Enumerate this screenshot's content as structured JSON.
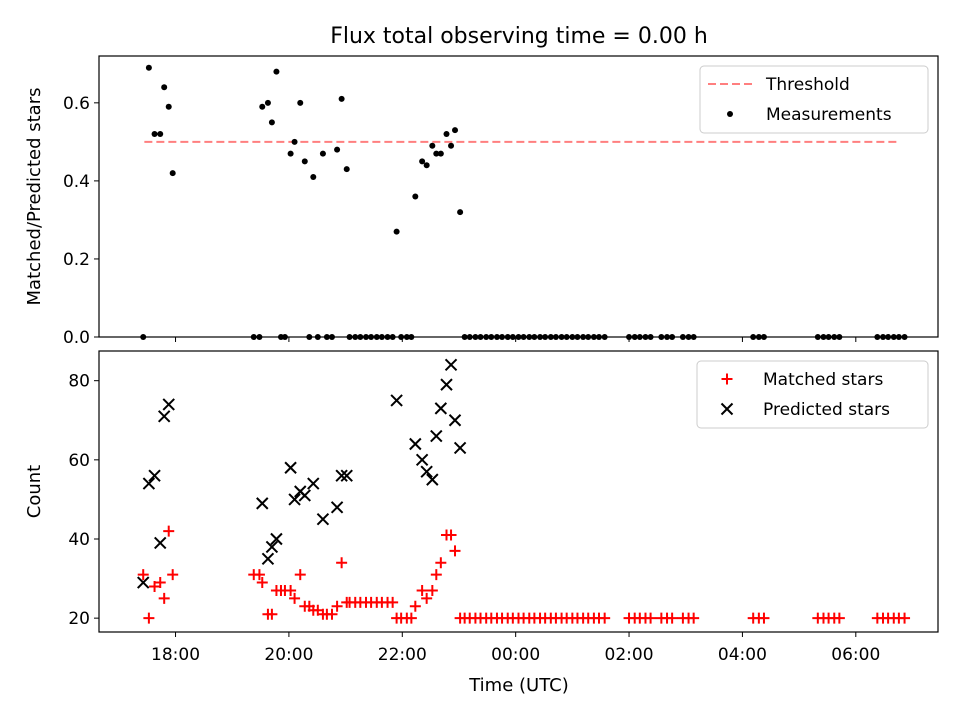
{
  "chart_data": {
    "title": "Flux total observing time = 0.00 h",
    "x_axis": {
      "label": "Time (UTC)",
      "range_hours": [
        16.65,
        31.45
      ],
      "ticks": [
        {
          "value": 18,
          "label": "18:00"
        },
        {
          "value": 20,
          "label": "20:00"
        },
        {
          "value": 22,
          "label": "22:00"
        },
        {
          "value": 24,
          "label": "00:00"
        },
        {
          "value": 26,
          "label": "02:00"
        },
        {
          "value": 28,
          "label": "04:00"
        },
        {
          "value": 30,
          "label": "06:00"
        }
      ]
    },
    "panels": [
      {
        "type": "scatter",
        "ylabel": "Matched/Predicted stars",
        "ylim": [
          0,
          0.72
        ],
        "yticks": [
          "0.0",
          "0.2",
          "0.4",
          "0.6"
        ],
        "yticks_values": [
          0,
          0.2,
          0.4,
          0.6
        ],
        "legend": {
          "placement": "upper right",
          "entries": [
            {
              "label": "Threshold",
              "style": "dashed-line",
              "color": "#ff7f7f"
            },
            {
              "label": "Measurements",
              "style": "dot",
              "color": "#000000"
            }
          ]
        },
        "threshold": {
          "value": 0.5,
          "x_range": [
            17.45,
            30.75
          ],
          "color": "#ff7f7f"
        },
        "measurements": [
          [
            17.53,
            0.69
          ],
          [
            17.63,
            0.52
          ],
          [
            17.73,
            0.52
          ],
          [
            17.8,
            0.64
          ],
          [
            17.88,
            0.59
          ],
          [
            17.95,
            0.42
          ],
          [
            19.53,
            0.59
          ],
          [
            19.63,
            0.6
          ],
          [
            19.7,
            0.55
          ],
          [
            19.78,
            0.68
          ],
          [
            20.03,
            0.47
          ],
          [
            20.1,
            0.5
          ],
          [
            20.2,
            0.6
          ],
          [
            20.28,
            0.45
          ],
          [
            20.43,
            0.41
          ],
          [
            20.6,
            0.47
          ],
          [
            20.85,
            0.48
          ],
          [
            20.93,
            0.61
          ],
          [
            21.02,
            0.43
          ],
          [
            21.9,
            0.27
          ],
          [
            22.23,
            0.36
          ],
          [
            22.35,
            0.45
          ],
          [
            22.43,
            0.44
          ],
          [
            22.53,
            0.49
          ],
          [
            22.6,
            0.47
          ],
          [
            22.68,
            0.47
          ],
          [
            22.78,
            0.52
          ],
          [
            22.86,
            0.49
          ],
          [
            22.93,
            0.53
          ],
          [
            23.02,
            0.32
          ],
          [
            17.43,
            0
          ],
          [
            19.38,
            0
          ],
          [
            19.48,
            0
          ],
          [
            19.86,
            0
          ],
          [
            19.93,
            0
          ],
          [
            20.36,
            0
          ],
          [
            20.51,
            0
          ],
          [
            20.67,
            0
          ],
          [
            20.76,
            0
          ],
          [
            21.07,
            0
          ],
          [
            21.17,
            0
          ],
          [
            21.26,
            0
          ],
          [
            21.36,
            0
          ],
          [
            21.45,
            0
          ],
          [
            21.55,
            0
          ],
          [
            21.64,
            0
          ],
          [
            21.74,
            0
          ],
          [
            21.83,
            0
          ],
          [
            21.98,
            0
          ],
          [
            22.08,
            0
          ],
          [
            22.16,
            0
          ],
          [
            23.1,
            0
          ],
          [
            23.19,
            0
          ],
          [
            23.29,
            0
          ],
          [
            23.38,
            0
          ],
          [
            23.48,
            0
          ],
          [
            23.57,
            0
          ],
          [
            23.67,
            0
          ],
          [
            23.76,
            0
          ],
          [
            23.86,
            0
          ],
          [
            23.95,
            0
          ],
          [
            24.05,
            0
          ],
          [
            24.14,
            0
          ],
          [
            24.24,
            0
          ],
          [
            24.33,
            0
          ],
          [
            24.43,
            0
          ],
          [
            24.52,
            0
          ],
          [
            24.62,
            0
          ],
          [
            24.71,
            0
          ],
          [
            24.81,
            0
          ],
          [
            24.9,
            0
          ],
          [
            25.0,
            0
          ],
          [
            25.09,
            0
          ],
          [
            25.19,
            0
          ],
          [
            25.28,
            0
          ],
          [
            25.38,
            0
          ],
          [
            25.47,
            0
          ],
          [
            25.57,
            0
          ],
          [
            26.0,
            0
          ],
          [
            26.1,
            0
          ],
          [
            26.19,
            0
          ],
          [
            26.29,
            0
          ],
          [
            26.38,
            0
          ],
          [
            26.57,
            0
          ],
          [
            26.67,
            0
          ],
          [
            26.76,
            0
          ],
          [
            26.95,
            0
          ],
          [
            27.05,
            0
          ],
          [
            27.14,
            0
          ],
          [
            28.19,
            0
          ],
          [
            28.29,
            0
          ],
          [
            28.38,
            0
          ],
          [
            29.33,
            0
          ],
          [
            29.43,
            0
          ],
          [
            29.52,
            0
          ],
          [
            29.62,
            0
          ],
          [
            29.71,
            0
          ],
          [
            30.38,
            0
          ],
          [
            30.48,
            0
          ],
          [
            30.57,
            0
          ],
          [
            30.67,
            0
          ],
          [
            30.76,
            0
          ],
          [
            30.86,
            0
          ]
        ]
      },
      {
        "type": "scatter",
        "ylabel": "Count",
        "ylim": [
          16.5,
          87.5
        ],
        "yticks": [
          "20",
          "40",
          "60",
          "80"
        ],
        "yticks_values": [
          20,
          40,
          60,
          80
        ],
        "legend": {
          "placement": "upper right",
          "entries": [
            {
              "label": "Matched stars",
              "style": "plus",
              "color": "#ff0000"
            },
            {
              "label": "Predicted stars",
              "style": "x",
              "color": "#000000"
            }
          ]
        },
        "matched": [
          [
            17.43,
            31
          ],
          [
            17.53,
            20
          ],
          [
            17.63,
            28
          ],
          [
            17.73,
            29
          ],
          [
            17.8,
            25
          ],
          [
            17.88,
            42
          ],
          [
            17.95,
            31
          ],
          [
            19.38,
            31
          ],
          [
            19.48,
            31
          ],
          [
            19.53,
            29
          ],
          [
            19.63,
            21
          ],
          [
            19.7,
            21
          ],
          [
            19.78,
            27
          ],
          [
            19.86,
            27
          ],
          [
            19.93,
            27
          ],
          [
            20.03,
            27
          ],
          [
            20.1,
            25
          ],
          [
            20.2,
            31
          ],
          [
            20.28,
            23
          ],
          [
            20.36,
            23
          ],
          [
            20.43,
            22
          ],
          [
            20.51,
            22
          ],
          [
            20.6,
            21
          ],
          [
            20.67,
            21
          ],
          [
            20.76,
            21
          ],
          [
            20.85,
            23
          ],
          [
            20.93,
            34
          ],
          [
            21.02,
            24
          ],
          [
            21.07,
            24
          ],
          [
            21.17,
            24
          ],
          [
            21.26,
            24
          ],
          [
            21.36,
            24
          ],
          [
            21.45,
            24
          ],
          [
            21.55,
            24
          ],
          [
            21.64,
            24
          ],
          [
            21.74,
            24
          ],
          [
            21.83,
            24
          ],
          [
            21.9,
            20
          ],
          [
            21.98,
            20
          ],
          [
            22.08,
            20
          ],
          [
            22.16,
            20
          ],
          [
            22.23,
            23
          ],
          [
            22.35,
            27
          ],
          [
            22.43,
            25
          ],
          [
            22.53,
            27
          ],
          [
            22.6,
            31
          ],
          [
            22.68,
            34
          ],
          [
            22.78,
            41
          ],
          [
            22.86,
            41
          ],
          [
            22.93,
            37
          ],
          [
            23.02,
            20
          ],
          [
            23.1,
            20
          ],
          [
            23.19,
            20
          ],
          [
            23.29,
            20
          ],
          [
            23.38,
            20
          ],
          [
            23.48,
            20
          ],
          [
            23.57,
            20
          ],
          [
            23.67,
            20
          ],
          [
            23.76,
            20
          ],
          [
            23.86,
            20
          ],
          [
            23.95,
            20
          ],
          [
            24.05,
            20
          ],
          [
            24.14,
            20
          ],
          [
            24.24,
            20
          ],
          [
            24.33,
            20
          ],
          [
            24.43,
            20
          ],
          [
            24.52,
            20
          ],
          [
            24.62,
            20
          ],
          [
            24.71,
            20
          ],
          [
            24.81,
            20
          ],
          [
            24.9,
            20
          ],
          [
            25.0,
            20
          ],
          [
            25.09,
            20
          ],
          [
            25.19,
            20
          ],
          [
            25.28,
            20
          ],
          [
            25.38,
            20
          ],
          [
            25.47,
            20
          ],
          [
            25.57,
            20
          ],
          [
            26.0,
            20
          ],
          [
            26.1,
            20
          ],
          [
            26.19,
            20
          ],
          [
            26.29,
            20
          ],
          [
            26.38,
            20
          ],
          [
            26.57,
            20
          ],
          [
            26.67,
            20
          ],
          [
            26.76,
            20
          ],
          [
            26.95,
            20
          ],
          [
            27.05,
            20
          ],
          [
            27.14,
            20
          ],
          [
            28.19,
            20
          ],
          [
            28.29,
            20
          ],
          [
            28.38,
            20
          ],
          [
            29.33,
            20
          ],
          [
            29.43,
            20
          ],
          [
            29.52,
            20
          ],
          [
            29.62,
            20
          ],
          [
            29.71,
            20
          ],
          [
            30.38,
            20
          ],
          [
            30.48,
            20
          ],
          [
            30.57,
            20
          ],
          [
            30.67,
            20
          ],
          [
            30.76,
            20
          ],
          [
            30.86,
            20
          ]
        ],
        "predicted": [
          [
            17.43,
            29
          ],
          [
            17.53,
            54
          ],
          [
            17.63,
            56
          ],
          [
            17.73,
            39
          ],
          [
            17.8,
            71
          ],
          [
            17.88,
            74
          ],
          [
            19.53,
            49
          ],
          [
            19.63,
            35
          ],
          [
            19.7,
            38
          ],
          [
            19.78,
            40
          ],
          [
            20.03,
            58
          ],
          [
            20.1,
            50
          ],
          [
            20.2,
            52
          ],
          [
            20.28,
            51
          ],
          [
            20.43,
            54
          ],
          [
            20.6,
            45
          ],
          [
            20.85,
            48
          ],
          [
            20.93,
            56
          ],
          [
            21.02,
            56
          ],
          [
            21.9,
            75
          ],
          [
            22.23,
            64
          ],
          [
            22.35,
            60
          ],
          [
            22.43,
            57
          ],
          [
            22.53,
            55
          ],
          [
            22.6,
            66
          ],
          [
            22.68,
            73
          ],
          [
            22.78,
            79
          ],
          [
            22.86,
            84
          ],
          [
            22.93,
            70
          ],
          [
            23.02,
            63
          ]
        ]
      }
    ]
  }
}
